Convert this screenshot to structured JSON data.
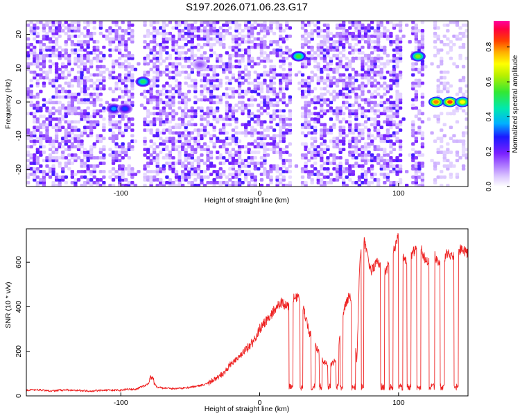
{
  "title": "S197.2026.071.06.23.G17",
  "chart_data": [
    {
      "type": "heatmap",
      "title": "S197.2026.071.06.23.G17",
      "xlabel": "Height of straight line (km)",
      "ylabel": "Frequency (Hz)",
      "xlim": [
        -168,
        150
      ],
      "ylim": [
        -25,
        24
      ],
      "x_ticks": [
        -100,
        0,
        100
      ],
      "x_tick_labels": [
        "-100",
        "0",
        "100"
      ],
      "y_ticks": [
        -20,
        -10,
        0,
        10,
        20
      ],
      "y_tick_labels": [
        "-20",
        "-10",
        "0",
        "10",
        "20"
      ],
      "colorbar": {
        "label": "Normalized spectral amplitude",
        "range": [
          0,
          0.95
        ],
        "ticks": [
          0,
          0.2,
          0.4,
          0.6,
          0.8
        ],
        "tick_labels": [
          "0.0",
          "0.2",
          "0.4",
          "0.6",
          "0.8"
        ]
      },
      "blank_bands_km": [
        [
          -112,
          -108
        ],
        [
          -90,
          -85
        ],
        [
          23,
          30
        ],
        [
          103,
          110
        ],
        [
          118,
          126
        ]
      ],
      "hotspots": [
        {
          "x": -105,
          "y": -2,
          "amplitude": 0.35
        },
        {
          "x": -97,
          "y": -2,
          "amplitude": 0.3
        },
        {
          "x": -84,
          "y": 6,
          "amplitude": 0.5
        },
        {
          "x": -43,
          "y": 11,
          "amplitude": 0.15
        },
        {
          "x": 28,
          "y": 13.5,
          "amplitude": 0.55
        },
        {
          "x": 114,
          "y": 13.5,
          "amplitude": 0.6
        },
        {
          "x": 127,
          "y": 0,
          "amplitude": 0.8
        },
        {
          "x": 137,
          "y": 0,
          "amplitude": 0.85
        },
        {
          "x": 146,
          "y": 0,
          "amplitude": 0.7
        }
      ]
    },
    {
      "type": "line",
      "xlabel": "Height of straight line (km)",
      "ylabel": "SNR (10 * v/v)",
      "xlim": [
        -168,
        150
      ],
      "ylim": [
        0,
        750
      ],
      "x_ticks": [
        -100,
        0,
        100
      ],
      "x_tick_labels": [
        "-100",
        "0",
        "100"
      ],
      "y_ticks": [
        0,
        200,
        400,
        600
      ],
      "y_tick_labels": [
        "0",
        "200",
        "400",
        "600"
      ],
      "color": "#ee2222",
      "series": [
        {
          "name": "SNR",
          "x": [
            -168,
            -160,
            -150,
            -140,
            -130,
            -120,
            -110,
            -100,
            -95,
            -90,
            -85,
            -80,
            -78,
            -76,
            -74,
            -70,
            -60,
            -50,
            -40,
            -30,
            -25,
            -20,
            -15,
            -10,
            -5,
            0,
            5,
            10,
            15,
            20,
            25,
            30,
            35,
            40,
            45,
            50,
            55,
            60,
            65,
            70,
            72,
            75,
            80,
            85,
            90,
            95,
            100,
            105,
            110,
            115,
            120,
            125,
            130,
            135,
            140,
            145,
            150
          ],
          "y": [
            25,
            28,
            22,
            27,
            24,
            22,
            26,
            25,
            30,
            28,
            40,
            55,
            90,
            60,
            40,
            35,
            32,
            38,
            50,
            80,
            110,
            150,
            170,
            210,
            240,
            300,
            340,
            380,
            420,
            400,
            450,
            430,
            300,
            230,
            160,
            130,
            160,
            370,
            460,
            155,
            610,
            700,
            560,
            600,
            550,
            620,
            720,
            600,
            640,
            680,
            600,
            640,
            590,
            640,
            620,
            660,
            640
          ]
        }
      ]
    }
  ]
}
